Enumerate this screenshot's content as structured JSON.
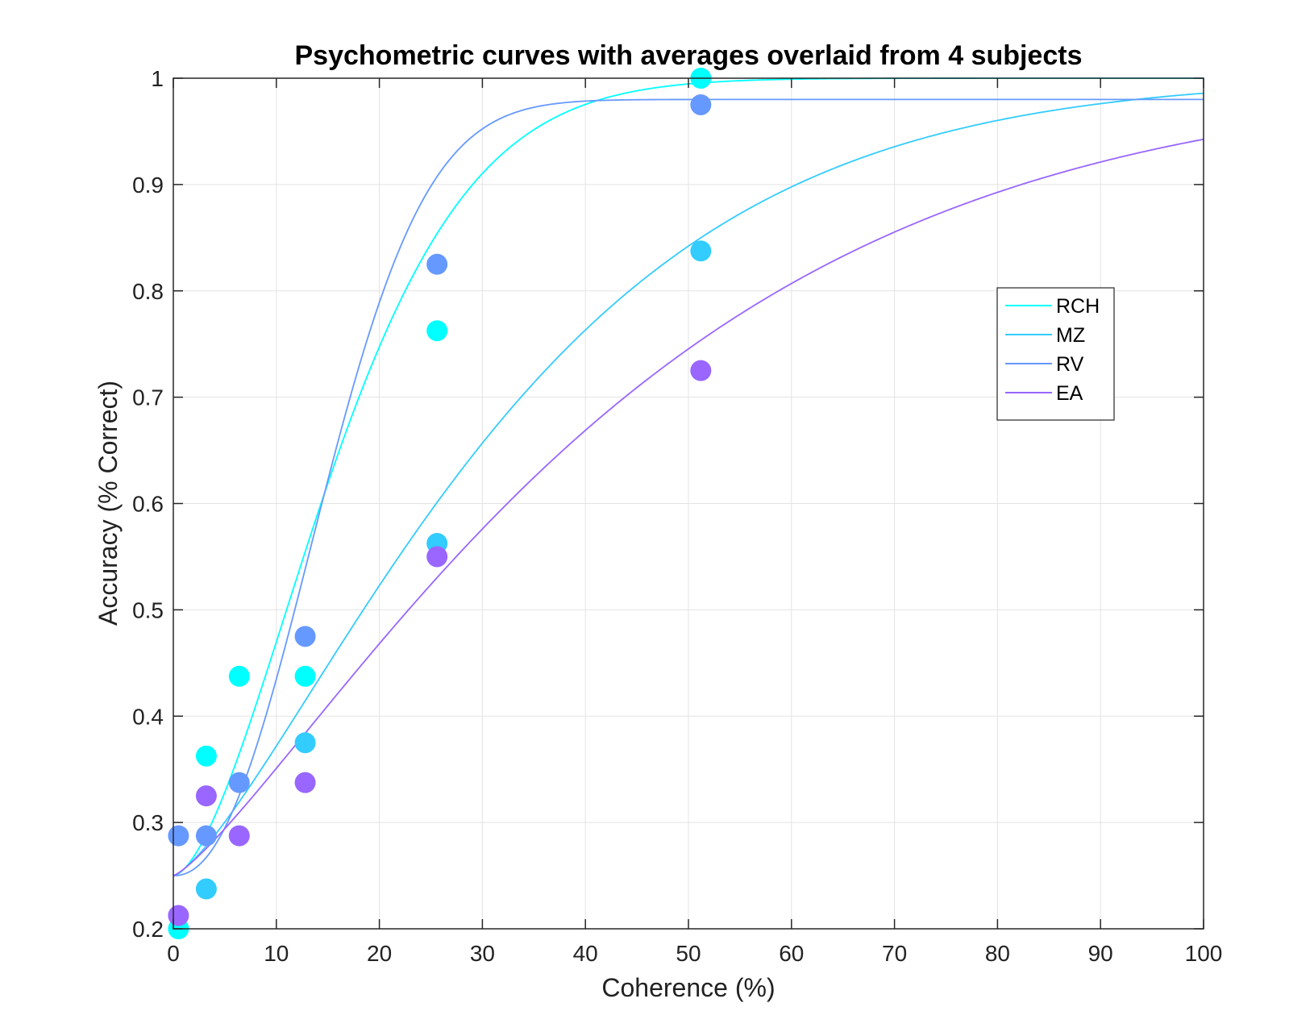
{
  "chart_data": {
    "type": "scatter",
    "title": "Psychometric curves with averages overlaid from 4 subjects",
    "xlabel": "Coherence (%)",
    "ylabel": "Accuracy (% Correct)",
    "xlim": [
      0,
      100
    ],
    "ylim": [
      0.2,
      1
    ],
    "xticks": [
      "0",
      "10",
      "20",
      "30",
      "40",
      "50",
      "60",
      "70",
      "80",
      "90",
      "100"
    ],
    "yticks": [
      "0.2",
      "0.3",
      "0.4",
      "0.5",
      "0.6",
      "0.7",
      "0.8",
      "0.9",
      "1"
    ],
    "grid": true,
    "legend_position": "right",
    "series": [
      {
        "name": "RCH",
        "color": "#00ffff",
        "x": [
          0.5,
          3.2,
          6.4,
          12.8,
          25.6,
          51.2
        ],
        "y": [
          0.2,
          0.3625,
          0.4375,
          0.4375,
          0.7625,
          1.0
        ],
        "fit": {
          "alpha": 19.0,
          "beta": 1.65,
          "lapse": 0.0
        }
      },
      {
        "name": "MZ",
        "color": "#33ccff",
        "x": [
          3.2,
          12.8,
          25.6,
          51.2
        ],
        "y": [
          0.2375,
          0.375,
          0.5625,
          0.8375
        ],
        "fit": {
          "alpha": 36.0,
          "beta": 1.35,
          "lapse": 0.0
        }
      },
      {
        "name": "RV",
        "color": "#6699ff",
        "x": [
          0.5,
          3.2,
          6.4,
          12.8,
          25.6,
          51.2
        ],
        "y": [
          0.2875,
          0.2875,
          0.3375,
          0.475,
          0.825,
          0.975
        ],
        "fit": {
          "alpha": 17.5,
          "beta": 2.2,
          "lapse": 0.02
        }
      },
      {
        "name": "EA",
        "color": "#9966ff",
        "x": [
          0.5,
          3.2,
          6.4,
          12.8,
          25.6,
          51.2
        ],
        "y": [
          0.2125,
          0.325,
          0.2875,
          0.3375,
          0.55,
          0.725
        ],
        "fit": {
          "alpha": 47.0,
          "beta": 1.25,
          "lapse": 0.0
        }
      }
    ]
  }
}
